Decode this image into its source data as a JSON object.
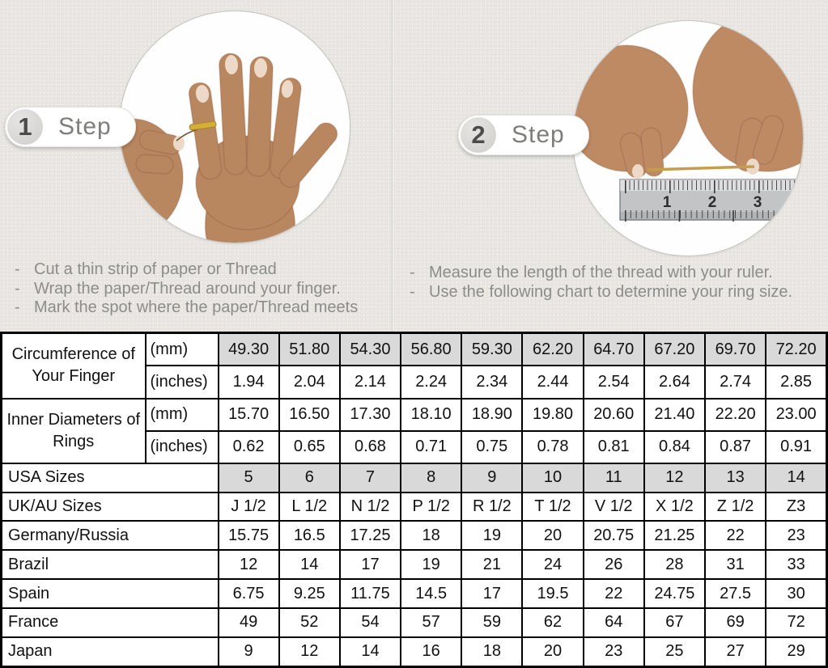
{
  "steps": [
    {
      "number": "1",
      "label": "Step",
      "image": "hand-with-ring-photo",
      "bullets": [
        "Cut a thin strip of paper or Thread",
        "Wrap the paper/Thread around your finger.",
        "Mark the spot where the paper/Thread meets"
      ]
    },
    {
      "number": "2",
      "label": "Step",
      "image": "hands-measuring-thread-on-ruler-photo",
      "bullets": [
        "Measure the length of the thread with your ruler.",
        "Use the following chart to determine your ring size."
      ]
    }
  ],
  "ruler_numbers": [
    "1",
    "2",
    "3"
  ],
  "table": {
    "row_groups": [
      {
        "label": "Circumference of Your Finger",
        "rows": [
          {
            "unit": "(mm)",
            "shaded": true,
            "values": [
              "49.30",
              "51.80",
              "54.30",
              "56.80",
              "59.30",
              "62.20",
              "64.70",
              "67.20",
              "69.70",
              "72.20"
            ]
          },
          {
            "unit": "(inches)",
            "shaded": false,
            "values": [
              "1.94",
              "2.04",
              "2.14",
              "2.24",
              "2.34",
              "2.44",
              "2.54",
              "2.64",
              "2.74",
              "2.85"
            ]
          }
        ]
      },
      {
        "label": "Inner Diameters of Rings",
        "rows": [
          {
            "unit": "(mm)",
            "shaded": false,
            "values": [
              "15.70",
              "16.50",
              "17.30",
              "18.10",
              "18.90",
              "19.80",
              "20.60",
              "21.40",
              "22.20",
              "23.00"
            ]
          },
          {
            "unit": "(inches)",
            "shaded": false,
            "values": [
              "0.62",
              "0.65",
              "0.68",
              "0.71",
              "0.75",
              "0.78",
              "0.81",
              "0.84",
              "0.87",
              "0.91"
            ]
          }
        ]
      }
    ],
    "country_rows": [
      {
        "label": "USA Sizes",
        "shaded": true,
        "values": [
          "5",
          "6",
          "7",
          "8",
          "9",
          "10",
          "11",
          "12",
          "13",
          "14"
        ]
      },
      {
        "label": "UK/AU Sizes",
        "shaded": false,
        "values": [
          "J 1/2",
          "L 1/2",
          "N 1/2",
          "P 1/2",
          "R 1/2",
          "T 1/2",
          "V 1/2",
          "X 1/2",
          "Z 1/2",
          "Z3"
        ]
      },
      {
        "label": "Germany/Russia",
        "shaded": false,
        "values": [
          "15.75",
          "16.5",
          "17.25",
          "18",
          "19",
          "20",
          "20.75",
          "21.25",
          "22",
          "23"
        ]
      },
      {
        "label": "Brazil",
        "shaded": false,
        "values": [
          "12",
          "14",
          "17",
          "19",
          "21",
          "24",
          "26",
          "28",
          "31",
          "33"
        ]
      },
      {
        "label": "Spain",
        "shaded": false,
        "values": [
          "6.75",
          "9.25",
          "11.75",
          "14.5",
          "17",
          "19.5",
          "22",
          "24.75",
          "27.5",
          "30"
        ]
      },
      {
        "label": "France",
        "shaded": false,
        "values": [
          "49",
          "52",
          "54",
          "57",
          "59",
          "62",
          "64",
          "67",
          "69",
          "72"
        ]
      },
      {
        "label": "Japan",
        "shaded": false,
        "values": [
          "9",
          "12",
          "14",
          "16",
          "18",
          "20",
          "23",
          "25",
          "27",
          "29"
        ]
      }
    ]
  },
  "colors": {
    "shaded_cell": "#d9d9d9",
    "table_border": "#000000",
    "muted_text": "#8c8c8a",
    "thread_gold": "#c69c4e",
    "skin": "#b8865f"
  }
}
